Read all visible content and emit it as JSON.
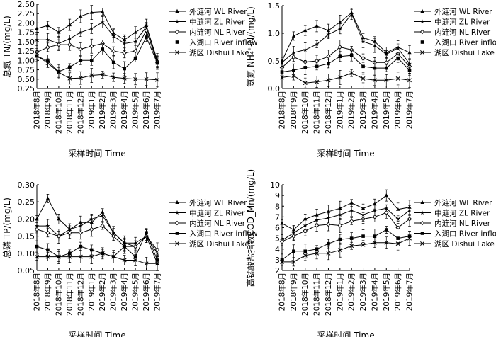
{
  "months": [
    "2018年8月",
    "2018年9月",
    "2018年10月",
    "2018年11月",
    "2018年12月",
    "2019年1月",
    "2019年2月",
    "2019年3月",
    "2019年4月",
    "2019年5月",
    "2019年6月",
    "2019年7月"
  ],
  "legend": [
    "外涟河 WL River",
    "中涟河 ZL River",
    "内涟河 NL River",
    "入湖口 River inflow",
    "湖区 Dishui Lake"
  ],
  "xlabel": "采样时间 Time",
  "chart_data": [
    {
      "type": "line",
      "id": "tn",
      "ylabel": "总氮 TN/(mg/L)",
      "ylim": [
        0.25,
        2.5
      ],
      "yticks": [
        "0.25",
        "0.50",
        "0.75",
        "1.00",
        "1.25",
        "1.50",
        "1.75",
        "2.00",
        "2.25",
        "2.50"
      ],
      "series": [
        {
          "name": "外涟河 WL River",
          "values": [
            1.85,
            1.93,
            1.75,
            1.95,
            2.18,
            2.28,
            2.3,
            1.73,
            1.55,
            1.75,
            1.93,
            1.0
          ]
        },
        {
          "name": "中涟河 ZL River",
          "values": [
            1.55,
            1.55,
            1.45,
            1.58,
            1.75,
            1.85,
            2.02,
            1.65,
            1.45,
            1.5,
            1.9,
            0.98
          ]
        },
        {
          "name": "内涟河 NL River",
          "values": [
            1.22,
            1.35,
            1.42,
            1.42,
            1.3,
            1.38,
            1.45,
            1.25,
            1.2,
            1.25,
            1.8,
            0.95
          ]
        },
        {
          "name": "入湖口 River inflow",
          "values": [
            1.12,
            0.98,
            0.7,
            0.82,
            1.0,
            1.0,
            1.3,
            0.95,
            0.78,
            1.05,
            1.62,
            0.93
          ]
        },
        {
          "name": "湖区 Dishui Lake",
          "values": [
            1.12,
            0.93,
            0.68,
            0.52,
            0.53,
            0.6,
            0.62,
            0.55,
            0.52,
            0.5,
            0.5,
            0.48
          ]
        }
      ]
    },
    {
      "type": "line",
      "id": "nh4",
      "ylabel": "氨氮 NH₄⁺-N/(mg/L)",
      "ylim": [
        0,
        1.5
      ],
      "yticks": [
        "0.0",
        "0.5",
        "1.0",
        "1.5"
      ],
      "series": [
        {
          "name": "外涟河 WL River",
          "values": [
            0.5,
            0.95,
            1.05,
            1.13,
            1.05,
            1.2,
            1.37,
            0.92,
            0.85,
            0.65,
            0.75,
            0.65
          ]
        },
        {
          "name": "中涟河 ZL River",
          "values": [
            0.47,
            0.65,
            0.7,
            0.8,
            0.98,
            1.08,
            1.35,
            0.85,
            0.78,
            0.62,
            0.73,
            0.45
          ]
        },
        {
          "name": "内涟河 NL River",
          "values": [
            0.38,
            0.57,
            0.48,
            0.5,
            0.58,
            0.75,
            0.7,
            0.55,
            0.47,
            0.47,
            0.63,
            0.4
          ]
        },
        {
          "name": "入湖口 River inflow",
          "values": [
            0.3,
            0.33,
            0.38,
            0.4,
            0.45,
            0.58,
            0.6,
            0.4,
            0.37,
            0.37,
            0.55,
            0.33
          ]
        },
        {
          "name": "湖区 Dishui Lake",
          "values": [
            0.2,
            0.23,
            0.1,
            0.12,
            0.15,
            0.2,
            0.28,
            0.18,
            0.15,
            0.15,
            0.18,
            0.15
          ]
        }
      ]
    },
    {
      "type": "line",
      "id": "tp",
      "ylabel": "总磷 TP/(mg/L)",
      "ylim": [
        0.05,
        0.3
      ],
      "yticks": [
        "0.05",
        "0.10",
        "0.15",
        "0.20",
        "0.25",
        "0.30"
      ],
      "series": [
        {
          "name": "外涟河 WL River",
          "values": [
            0.2,
            0.26,
            0.2,
            0.17,
            0.19,
            0.19,
            0.22,
            0.16,
            0.13,
            0.13,
            0.15,
            0.07
          ]
        },
        {
          "name": "中涟河 ZL River",
          "values": [
            0.18,
            0.18,
            0.15,
            0.17,
            0.18,
            0.2,
            0.21,
            0.16,
            0.13,
            0.12,
            0.15,
            0.1
          ]
        },
        {
          "name": "内涟河 NL River",
          "values": [
            0.17,
            0.16,
            0.15,
            0.16,
            0.16,
            0.17,
            0.18,
            0.15,
            0.12,
            0.12,
            0.15,
            0.11
          ]
        },
        {
          "name": "入湖口 River inflow",
          "values": [
            0.12,
            0.11,
            0.09,
            0.1,
            0.12,
            0.11,
            0.1,
            0.09,
            0.12,
            0.09,
            0.16,
            0.08
          ]
        },
        {
          "name": "湖区 Dishui Lake",
          "values": [
            0.09,
            0.09,
            0.09,
            0.09,
            0.09,
            0.09,
            0.1,
            0.09,
            0.08,
            0.08,
            0.07,
            0.07
          ]
        }
      ]
    },
    {
      "type": "line",
      "id": "cod",
      "ylabel": "高锰酸盐指数COD_Mn/(mg/L)",
      "ylim": [
        2,
        10
      ],
      "yticks": [
        "2",
        "3",
        "4",
        "5",
        "6",
        "7",
        "8",
        "9",
        "10"
      ],
      "series": [
        {
          "name": "外涟河 WL River",
          "values": [
            6.4,
            5.8,
            6.8,
            7.2,
            7.5,
            7.8,
            8.3,
            7.8,
            8.2,
            9.0,
            7.7,
            7.9
          ]
        },
        {
          "name": "中涟河 ZL River",
          "values": [
            4.8,
            5.5,
            6.2,
            6.7,
            6.9,
            7.2,
            7.6,
            7.2,
            7.6,
            7.8,
            6.8,
            7.6
          ]
        },
        {
          "name": "内涟河 NL River",
          "values": [
            4.7,
            5.2,
            5.7,
            6.2,
            6.3,
            6.2,
            6.6,
            6.8,
            7.0,
            7.4,
            6.0,
            6.8
          ]
        },
        {
          "name": "入湖口 River inflow",
          "values": [
            3.0,
            3.8,
            3.8,
            4.0,
            4.5,
            4.9,
            5.0,
            5.2,
            5.2,
            5.8,
            5.0,
            5.2
          ]
        },
        {
          "name": "湖区 Dishui Lake",
          "values": [
            2.8,
            2.8,
            3.4,
            3.6,
            3.6,
            3.9,
            4.3,
            4.4,
            4.6,
            4.6,
            4.5,
            5.0
          ]
        }
      ]
    }
  ]
}
